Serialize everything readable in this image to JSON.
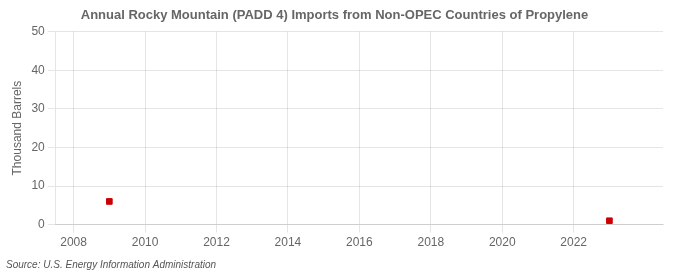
{
  "chart_data": {
    "type": "scatter",
    "title": "Annual Rocky Mountain (PADD 4) Imports from Non-OPEC Countries of Propylene",
    "ylabel": "Thousand Barrels",
    "annotations": [
      "Source: U.S. Energy Information Administration"
    ],
    "x": [
      2009,
      2023
    ],
    "values": [
      6,
      1
    ],
    "color": "#cc0000",
    "marker": "square",
    "xlim": [
      2007.5,
      2024.5
    ],
    "xticks": [
      2008,
      2010,
      2012,
      2014,
      2016,
      2018,
      2020,
      2022
    ],
    "ylim": [
      0,
      50
    ],
    "yticks": [
      0,
      10,
      20,
      30,
      40,
      50
    ],
    "grid": true
  }
}
